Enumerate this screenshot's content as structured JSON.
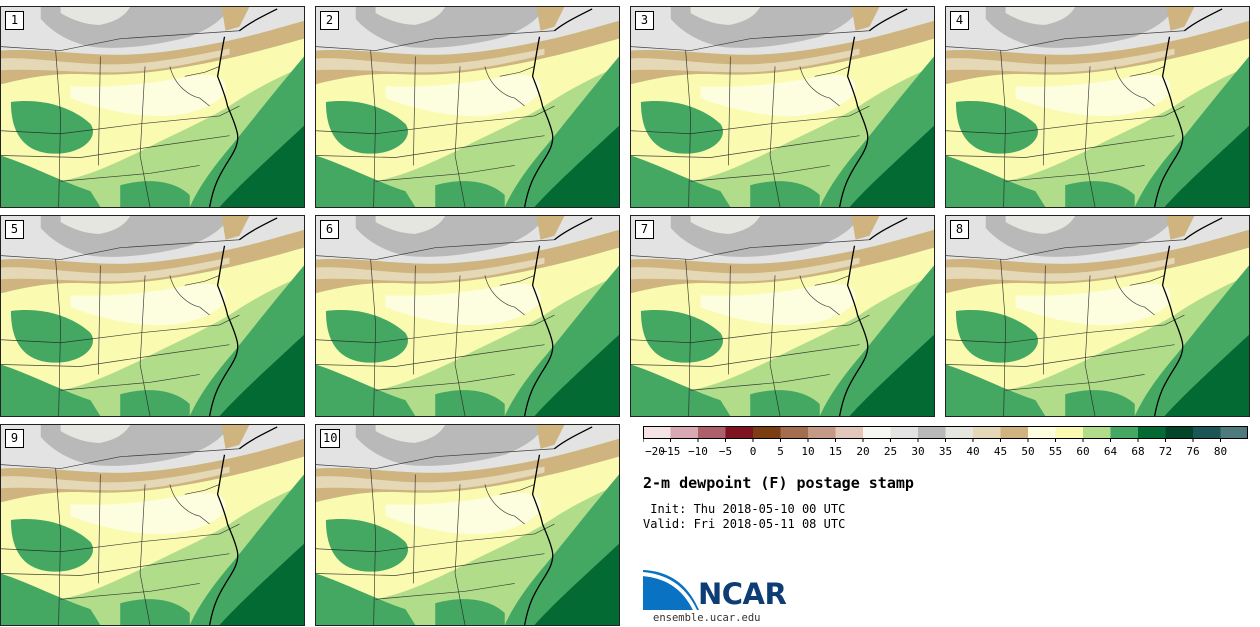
{
  "figure": {
    "title": "2-m dewpoint (F) postage stamp",
    "init_line": " Init: Thu 2018-05-10 00 UTC",
    "valid_line": "Valid: Fri 2018-05-11 08 UTC"
  },
  "panels": [
    {
      "label": "1"
    },
    {
      "label": "2"
    },
    {
      "label": "3"
    },
    {
      "label": "4"
    },
    {
      "label": "5"
    },
    {
      "label": "6"
    },
    {
      "label": "7"
    },
    {
      "label": "8"
    },
    {
      "label": "9"
    },
    {
      "label": "10"
    }
  ],
  "colorbar": {
    "ticks": [
      "−20",
      "−15",
      "−10",
      "−5",
      "0",
      "5",
      "10",
      "15",
      "20",
      "25",
      "30",
      "35",
      "40",
      "45",
      "50",
      "55",
      "60",
      "64",
      "68",
      "72",
      "76",
      "80"
    ],
    "colors": [
      "#f6e3e6",
      "#d9a9b3",
      "#ad5f6b",
      "#7f1321",
      "#7c3d13",
      "#a46d4e",
      "#c49a86",
      "#e2c8bb",
      "#f7f7f2",
      "#e3e3e3",
      "#b9b9b9",
      "#e5e6e0",
      "#e4d8b6",
      "#cfb47f",
      "#fdfde0",
      "#fafbb0",
      "#b1dd8b",
      "#44a863",
      "#036a34",
      "#03452a",
      "#1b5555",
      "#4f7a7d"
    ],
    "units": "F"
  },
  "branding": {
    "logo_text": "NCAR",
    "url": "ensemble.ucar.edu"
  },
  "icons": {
    "logo": "ncar-swoosh-logo"
  }
}
